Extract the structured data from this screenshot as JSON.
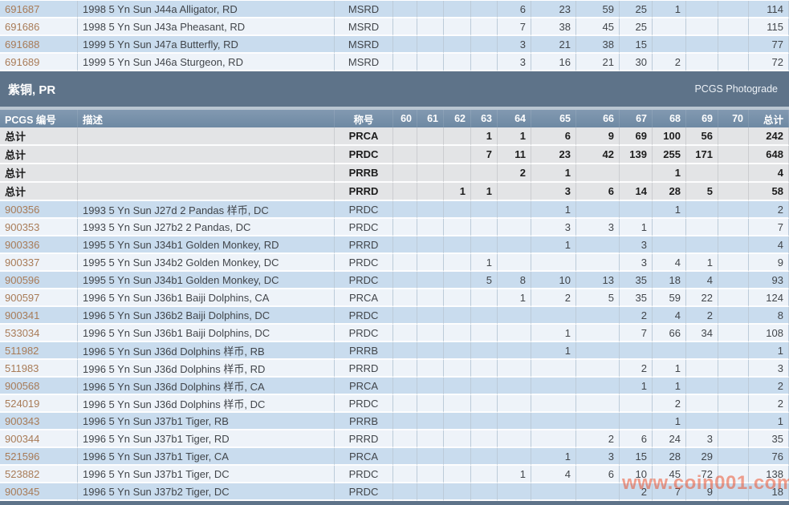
{
  "section": {
    "title": "紫铜, PR",
    "right_label": "PCGS Photograde"
  },
  "columns": [
    "PCGS 编号",
    "描述",
    "称号",
    "60",
    "61",
    "62",
    "63",
    "64",
    "65",
    "66",
    "67",
    "68",
    "69",
    "70",
    "总计"
  ],
  "ms_rows": [
    [
      "691687",
      "1998 5 Yn Sun J44a Alligator, RD",
      "MSRD",
      "",
      "",
      "",
      "",
      "6",
      "23",
      "59",
      "25",
      "1",
      "",
      "",
      "114"
    ],
    [
      "691686",
      "1998 5 Yn Sun J43a Pheasant, RD",
      "MSRD",
      "",
      "",
      "",
      "",
      "7",
      "38",
      "45",
      "25",
      "",
      "",
      "",
      "115"
    ],
    [
      "691688",
      "1999 5 Yn Sun J47a Butterfly, RD",
      "MSRD",
      "",
      "",
      "",
      "",
      "3",
      "21",
      "38",
      "15",
      "",
      "",
      "",
      "77"
    ],
    [
      "691689",
      "1999 5 Yn Sun J46a Sturgeon, RD",
      "MSRD",
      "",
      "",
      "",
      "",
      "3",
      "16",
      "21",
      "30",
      "2",
      "",
      "",
      "72"
    ]
  ],
  "pr_summary_rows": [
    [
      "总计",
      "",
      "PRCA",
      "",
      "",
      "",
      "1",
      "1",
      "6",
      "9",
      "69",
      "100",
      "56",
      "",
      "242"
    ],
    [
      "总计",
      "",
      "PRDC",
      "",
      "",
      "",
      "7",
      "11",
      "23",
      "42",
      "139",
      "255",
      "171",
      "",
      "648"
    ],
    [
      "总计",
      "",
      "PRRB",
      "",
      "",
      "",
      "",
      "2",
      "1",
      "",
      "",
      "1",
      "",
      "",
      "4"
    ],
    [
      "总计",
      "",
      "PRRD",
      "",
      "",
      "1",
      "1",
      "",
      "3",
      "6",
      "14",
      "28",
      "5",
      "",
      "58"
    ]
  ],
  "pr_rows": [
    [
      "900356",
      "1993 5 Yn Sun J27d 2 Pandas 样币, DC",
      "PRDC",
      "",
      "",
      "",
      "",
      "",
      "1",
      "",
      "",
      "1",
      "",
      "",
      "2"
    ],
    [
      "900353",
      "1993 5 Yn Sun J27b2 2 Pandas, DC",
      "PRDC",
      "",
      "",
      "",
      "",
      "",
      "3",
      "3",
      "1",
      "",
      "",
      "",
      "7"
    ],
    [
      "900336",
      "1995 5 Yn Sun J34b1 Golden Monkey, RD",
      "PRRD",
      "",
      "",
      "",
      "",
      "",
      "1",
      "",
      "3",
      "",
      "",
      "",
      "4"
    ],
    [
      "900337",
      "1995 5 Yn Sun J34b2 Golden Monkey, DC",
      "PRDC",
      "",
      "",
      "",
      "1",
      "",
      "",
      "",
      "3",
      "4",
      "1",
      "",
      "9"
    ],
    [
      "900596",
      "1995 5 Yn Sun J34b1 Golden Monkey, DC",
      "PRDC",
      "",
      "",
      "",
      "5",
      "8",
      "10",
      "13",
      "35",
      "18",
      "4",
      "",
      "93"
    ],
    [
      "900597",
      "1996 5 Yn Sun J36b1 Baiji Dolphins, CA",
      "PRCA",
      "",
      "",
      "",
      "",
      "1",
      "2",
      "5",
      "35",
      "59",
      "22",
      "",
      "124"
    ],
    [
      "900341",
      "1996 5 Yn Sun J36b2 Baiji Dolphins, DC",
      "PRDC",
      "",
      "",
      "",
      "",
      "",
      "",
      "",
      "2",
      "4",
      "2",
      "",
      "8"
    ],
    [
      "533034",
      "1996 5 Yn Sun J36b1 Baiji Dolphins, DC",
      "PRDC",
      "",
      "",
      "",
      "",
      "",
      "1",
      "",
      "7",
      "66",
      "34",
      "",
      "108"
    ],
    [
      "511982",
      "1996 5 Yn Sun J36d Dolphins 样币, RB",
      "PRRB",
      "",
      "",
      "",
      "",
      "",
      "1",
      "",
      "",
      "",
      "",
      "",
      "1"
    ],
    [
      "511983",
      "1996 5 Yn Sun J36d Dolphins 样币, RD",
      "PRRD",
      "",
      "",
      "",
      "",
      "",
      "",
      "",
      "2",
      "1",
      "",
      "",
      "3"
    ],
    [
      "900568",
      "1996 5 Yn Sun J36d Dolphins 样币, CA",
      "PRCA",
      "",
      "",
      "",
      "",
      "",
      "",
      "",
      "1",
      "1",
      "",
      "",
      "2"
    ],
    [
      "524019",
      "1996 5 Yn Sun J36d Dolphins 样币, DC",
      "PRDC",
      "",
      "",
      "",
      "",
      "",
      "",
      "",
      "",
      "2",
      "",
      "",
      "2"
    ],
    [
      "900343",
      "1996 5 Yn Sun J37b1 Tiger, RB",
      "PRRB",
      "",
      "",
      "",
      "",
      "",
      "",
      "",
      "",
      "1",
      "",
      "",
      "1"
    ],
    [
      "900344",
      "1996 5 Yn Sun J37b1 Tiger, RD",
      "PRRD",
      "",
      "",
      "",
      "",
      "",
      "",
      "2",
      "6",
      "24",
      "3",
      "",
      "35"
    ],
    [
      "521596",
      "1996 5 Yn Sun J37b1 Tiger, CA",
      "PRCA",
      "",
      "",
      "",
      "",
      "",
      "1",
      "3",
      "15",
      "28",
      "29",
      "",
      "76"
    ],
    [
      "523882",
      "1996 5 Yn Sun J37b1 Tiger, DC",
      "PRDC",
      "",
      "",
      "",
      "",
      "1",
      "4",
      "6",
      "10",
      "45",
      "72",
      "",
      "138"
    ],
    [
      "900345",
      "1996 5 Yn Sun J37b2 Tiger, DC",
      "PRDC",
      "",
      "",
      "",
      "",
      "",
      "",
      "",
      "2",
      "7",
      "9",
      "",
      "18"
    ]
  ],
  "watermark": "www.coin001.com",
  "colors": {
    "band": "#5e7389",
    "header": "#6e89a3",
    "row_alt": "#c9dcee",
    "row_main": "#eef3f9",
    "summary_bg": "#e3e4e6",
    "link": "#a87b57",
    "watermark": "#ec461e"
  }
}
